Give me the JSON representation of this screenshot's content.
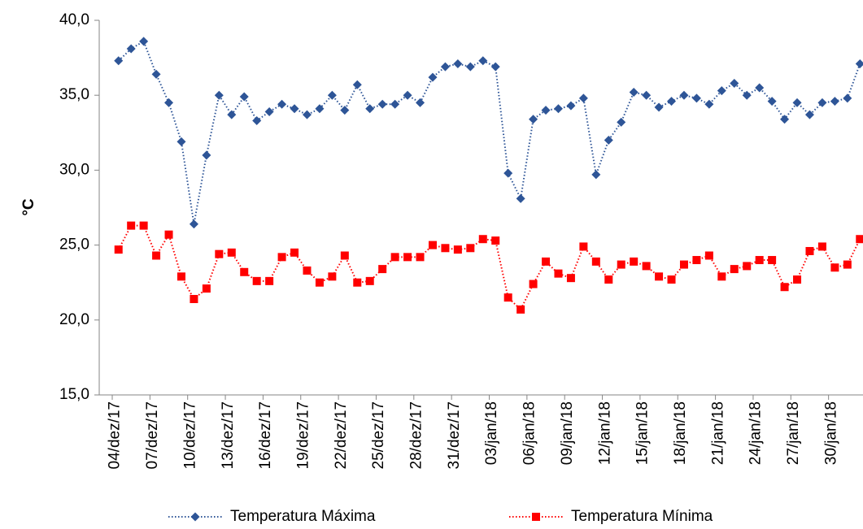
{
  "chart_data": {
    "type": "line",
    "y_label": "°C",
    "categories": [
      "04/dez/17",
      null,
      null,
      "07/dez/17",
      null,
      null,
      "10/dez/17",
      null,
      null,
      "13/dez/17",
      null,
      null,
      "16/dez/17",
      null,
      null,
      "19/dez/17",
      null,
      null,
      "22/dez/17",
      null,
      null,
      "25/dez/17",
      null,
      null,
      "28/dez/17",
      null,
      null,
      "31/dez/17",
      null,
      null,
      "03/jan/18",
      null,
      null,
      "06/jan/18",
      null,
      null,
      "09/jan/18",
      null,
      null,
      "12/jan/18",
      null,
      null,
      "15/jan/18",
      null,
      null,
      "18/jan/18",
      null,
      null,
      "21/jan/18",
      null,
      null,
      "24/jan/18",
      null,
      null,
      "27/jan/18",
      null,
      null,
      "30/jan/18",
      null,
      null
    ],
    "series": [
      {
        "name": "Temperatura Máxima",
        "color": "#2E5597",
        "marker": "diamond",
        "values": [
          37.3,
          38.1,
          38.6,
          36.4,
          34.5,
          31.9,
          26.4,
          31.0,
          35.0,
          33.7,
          34.9,
          33.3,
          33.9,
          34.4,
          34.1,
          33.7,
          34.1,
          35.0,
          34.0,
          35.7,
          34.1,
          34.4,
          34.4,
          35.0,
          34.5,
          36.2,
          36.9,
          37.1,
          36.9,
          37.3,
          36.9,
          29.8,
          28.1,
          33.4,
          34.0,
          34.1,
          34.3,
          34.8,
          29.7,
          32.0,
          33.2,
          35.2,
          35.0,
          34.2,
          34.6,
          35.0,
          34.8,
          34.4,
          35.3,
          35.8,
          35.0,
          35.5,
          34.6,
          33.4,
          34.5,
          33.7,
          34.5,
          34.6,
          34.8,
          37.1
        ]
      },
      {
        "name": "Temperatura Mínima",
        "color": "#FF0000",
        "marker": "square",
        "values": [
          24.7,
          26.3,
          26.3,
          24.3,
          25.7,
          22.9,
          21.4,
          22.1,
          24.4,
          24.5,
          23.2,
          22.6,
          22.6,
          24.2,
          24.5,
          23.3,
          22.5,
          22.9,
          24.3,
          22.5,
          22.6,
          23.4,
          24.2,
          24.2,
          24.2,
          25.0,
          24.8,
          24.7,
          24.8,
          25.4,
          25.3,
          21.5,
          20.7,
          22.4,
          23.9,
          23.1,
          22.8,
          24.9,
          23.9,
          22.7,
          23.7,
          23.9,
          23.6,
          22.9,
          22.7,
          23.7,
          24.0,
          24.3,
          22.9,
          23.4,
          23.6,
          24.0,
          24.0,
          22.2,
          22.7,
          24.6,
          24.9,
          23.5,
          23.7,
          25.4
        ]
      }
    ],
    "ylim": [
      15,
      40
    ],
    "yticks": [
      {
        "value": 15,
        "label": "15,0"
      },
      {
        "value": 20,
        "label": "20,0"
      },
      {
        "value": 25,
        "label": "25,0"
      },
      {
        "value": 30,
        "label": "30,0"
      },
      {
        "value": 35,
        "label": "35,0"
      },
      {
        "value": 40,
        "label": "40,0"
      }
    ],
    "grid": false,
    "legend": "bottom"
  }
}
